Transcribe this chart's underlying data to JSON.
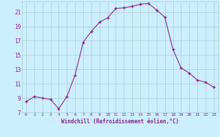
{
  "x": [
    0,
    1,
    2,
    3,
    4,
    5,
    6,
    7,
    8,
    9,
    10,
    11,
    12,
    13,
    14,
    15,
    16,
    17,
    18,
    19,
    20,
    21,
    22,
    23
  ],
  "y": [
    8.5,
    9.2,
    9.0,
    8.8,
    7.5,
    9.2,
    12.2,
    16.8,
    18.3,
    19.6,
    20.2,
    21.5,
    21.6,
    21.8,
    22.1,
    22.2,
    21.3,
    20.3,
    15.8,
    13.2,
    12.5,
    11.5,
    11.2,
    10.5
  ],
  "line_color": "#882288",
  "marker": "+",
  "marker_size": 3,
  "marker_color": "#882288",
  "bg_color": "#cceeff",
  "grid_color": "#aacccc",
  "xlabel": "Windchill (Refroidissement éolien,°C)",
  "xlabel_color": "#882288",
  "tick_color": "#882288",
  "ylim": [
    7,
    22.5
  ],
  "yticks": [
    7,
    9,
    11,
    13,
    15,
    17,
    19,
    21
  ],
  "xlim": [
    -0.5,
    23.5
  ],
  "xticks": [
    0,
    1,
    2,
    3,
    4,
    5,
    6,
    7,
    8,
    9,
    10,
    11,
    12,
    13,
    14,
    15,
    16,
    17,
    18,
    19,
    20,
    21,
    22,
    23
  ]
}
